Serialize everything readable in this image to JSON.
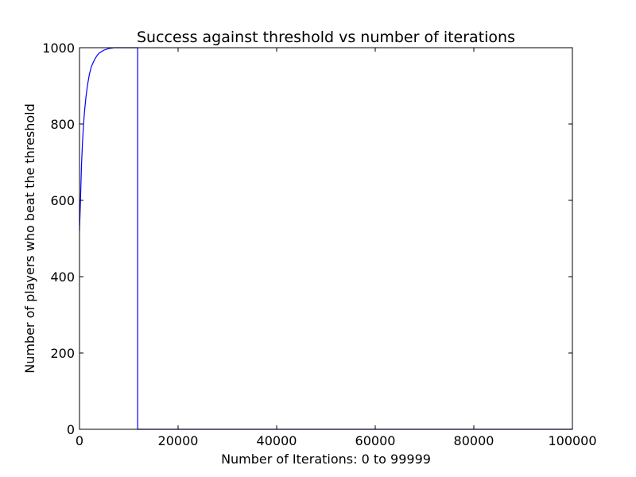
{
  "chart_data": {
    "type": "line",
    "title": "Success against threshold vs number of iterations",
    "xlabel": "Number of Iterations: 0 to 99999",
    "ylabel": "Number of players who beat the threshold",
    "xlim": [
      0,
      100000
    ],
    "ylim": [
      0,
      1000
    ],
    "xticks": [
      0,
      20000,
      40000,
      60000,
      80000,
      100000
    ],
    "yticks": [
      0,
      200,
      400,
      600,
      800,
      1000
    ],
    "xtick_labels": [
      "0",
      "20000",
      "40000",
      "60000",
      "80000",
      "100000"
    ],
    "ytick_labels": [
      "0",
      "200",
      "400",
      "600",
      "800",
      "1000"
    ],
    "grid": false,
    "series": [
      {
        "color": "#0000ff",
        "x": [
          0,
          200,
          400,
          600,
          800,
          1000,
          1300,
          1600,
          2000,
          2400,
          2800,
          3200,
          3600,
          4000,
          4500,
          5000,
          5500,
          6000,
          6500,
          7000,
          8000,
          9000,
          10000,
          11000,
          11800,
          11800,
          12500,
          20000,
          40000,
          60000,
          80000,
          99999
        ],
        "y": [
          520,
          600,
          690,
          750,
          795,
          830,
          870,
          900,
          930,
          950,
          962,
          972,
          980,
          986,
          990,
          994,
          996,
          998,
          999,
          1000,
          1000,
          1000,
          1000,
          1000,
          1000,
          0,
          0,
          0,
          0,
          0,
          0,
          0
        ]
      }
    ]
  }
}
